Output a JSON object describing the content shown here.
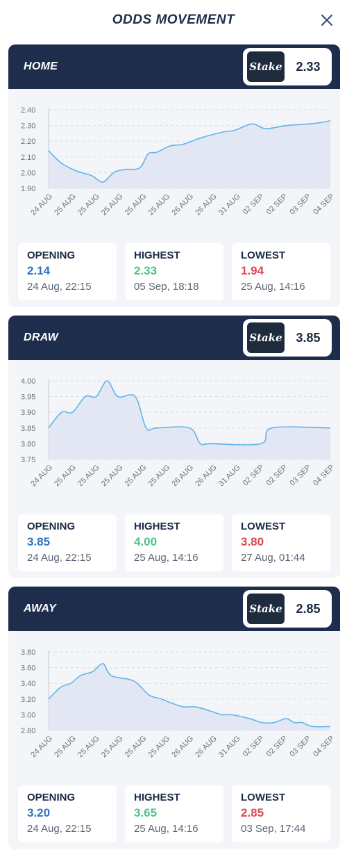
{
  "page": {
    "title": "ODDS MOVEMENT"
  },
  "markets": [
    {
      "name": "HOME",
      "bookmaker": "Stake",
      "current_odds": "2.33",
      "stats": {
        "opening": {
          "label": "OPENING",
          "value": "2.14",
          "date": "24 Aug, 22:15"
        },
        "highest": {
          "label": "HIGHEST",
          "value": "2.33",
          "date": "05 Sep, 18:18"
        },
        "lowest": {
          "label": "LOWEST",
          "value": "1.94",
          "date": "25 Aug, 14:16"
        }
      }
    },
    {
      "name": "DRAW",
      "bookmaker": "Stake",
      "current_odds": "3.85",
      "stats": {
        "opening": {
          "label": "OPENING",
          "value": "3.85",
          "date": "24 Aug, 22:15"
        },
        "highest": {
          "label": "HIGHEST",
          "value": "4.00",
          "date": "25 Aug, 14:16"
        },
        "lowest": {
          "label": "LOWEST",
          "value": "3.80",
          "date": "27 Aug, 01:44"
        }
      }
    },
    {
      "name": "AWAY",
      "bookmaker": "Stake",
      "current_odds": "2.85",
      "stats": {
        "opening": {
          "label": "OPENING",
          "value": "3.20",
          "date": "24 Aug, 22:15"
        },
        "highest": {
          "label": "HIGHEST",
          "value": "3.65",
          "date": "25 Aug, 14:16"
        },
        "lowest": {
          "label": "LOWEST",
          "value": "2.85",
          "date": "03 Sep, 17:44"
        }
      }
    }
  ],
  "colors": {
    "line": "#62b4ec",
    "area": "#e3e7f3",
    "header": "#1e2d4b",
    "opening": "#2f72c5",
    "highest": "#4ec18a",
    "lowest": "#e0444e"
  },
  "chart_data": [
    {
      "type": "area",
      "categories": [
        "24 AUG",
        "25 AUG",
        "25 AUG",
        "25 AUG",
        "25 AUG",
        "25 AUG",
        "26 AUG",
        "26 AUG",
        "31 AUG",
        "02 SEP",
        "02 SEP",
        "03 SEP",
        "04 SEP"
      ],
      "yticks": [
        1.9,
        2.0,
        2.1,
        2.2,
        2.3,
        2.4
      ],
      "ylim": [
        1.9,
        2.4
      ],
      "grid": true,
      "series": [
        {
          "values": [
            [
              0,
              2.14
            ],
            [
              0.6,
              2.06
            ],
            [
              1.3,
              2.01
            ],
            [
              2.0,
              1.98
            ],
            [
              2.5,
              1.94
            ],
            [
              3.0,
              2.0
            ],
            [
              3.5,
              2.02
            ],
            [
              4.2,
              2.03
            ],
            [
              4.6,
              2.12
            ],
            [
              5.0,
              2.13
            ],
            [
              5.6,
              2.17
            ],
            [
              6.2,
              2.18
            ],
            [
              7.0,
              2.22
            ],
            [
              7.5,
              2.24
            ],
            [
              8.1,
              2.26
            ],
            [
              8.6,
              2.27
            ],
            [
              9.4,
              2.31
            ],
            [
              10.0,
              2.28
            ],
            [
              11.0,
              2.3
            ],
            [
              12.0,
              2.31
            ],
            [
              12.6,
              2.32
            ],
            [
              13.0,
              2.33
            ]
          ]
        }
      ]
    },
    {
      "type": "area",
      "categories": [
        "24 AUG",
        "25 AUG",
        "25 AUG",
        "25 AUG",
        "25 AUG",
        "25 AUG",
        "26 AUG",
        "26 AUG",
        "31 AUG",
        "02 SEP",
        "02 SEP",
        "03 SEP",
        "04 SEP"
      ],
      "yticks": [
        3.75,
        3.8,
        3.85,
        3.9,
        3.95,
        4.0
      ],
      "ylim": [
        3.75,
        4.0
      ],
      "grid": true,
      "series": [
        {
          "values": [
            [
              0,
              3.85
            ],
            [
              0.6,
              3.9
            ],
            [
              1.1,
              3.9
            ],
            [
              1.7,
              3.95
            ],
            [
              2.2,
              3.95
            ],
            [
              2.7,
              4.0
            ],
            [
              3.2,
              3.95
            ],
            [
              4.0,
              3.95
            ],
            [
              4.5,
              3.85
            ],
            [
              5.0,
              3.85
            ],
            [
              6.5,
              3.85
            ],
            [
              7.0,
              3.8
            ],
            [
              7.5,
              3.8
            ],
            [
              9.8,
              3.8
            ],
            [
              10.3,
              3.85
            ],
            [
              13.0,
              3.85
            ]
          ]
        }
      ]
    },
    {
      "type": "area",
      "categories": [
        "24 AUG",
        "25 AUG",
        "25 AUG",
        "25 AUG",
        "25 AUG",
        "25 AUG",
        "26 AUG",
        "26 AUG",
        "31 AUG",
        "02 SEP",
        "02 SEP",
        "03 SEP",
        "04 SEP"
      ],
      "yticks": [
        2.8,
        3.0,
        3.2,
        3.4,
        3.6,
        3.8
      ],
      "ylim": [
        2.8,
        3.8
      ],
      "grid": true,
      "series": [
        {
          "values": [
            [
              0,
              3.2
            ],
            [
              0.6,
              3.35
            ],
            [
              1.1,
              3.4
            ],
            [
              1.6,
              3.5
            ],
            [
              2.2,
              3.55
            ],
            [
              2.7,
              3.65
            ],
            [
              3.1,
              3.5
            ],
            [
              4.0,
              3.45
            ],
            [
              4.4,
              3.4
            ],
            [
              5.0,
              3.25
            ],
            [
              5.6,
              3.2
            ],
            [
              6.1,
              3.15
            ],
            [
              6.7,
              3.1
            ],
            [
              7.3,
              3.1
            ],
            [
              8.0,
              3.05
            ],
            [
              8.6,
              3.0
            ],
            [
              9.1,
              3.0
            ],
            [
              10.0,
              2.95
            ],
            [
              10.6,
              2.9
            ],
            [
              11.2,
              2.9
            ],
            [
              11.8,
              2.95
            ],
            [
              12.2,
              2.9
            ],
            [
              12.6,
              2.9
            ],
            [
              13.1,
              2.85
            ],
            [
              14.0,
              2.85
            ]
          ]
        }
      ]
    }
  ]
}
